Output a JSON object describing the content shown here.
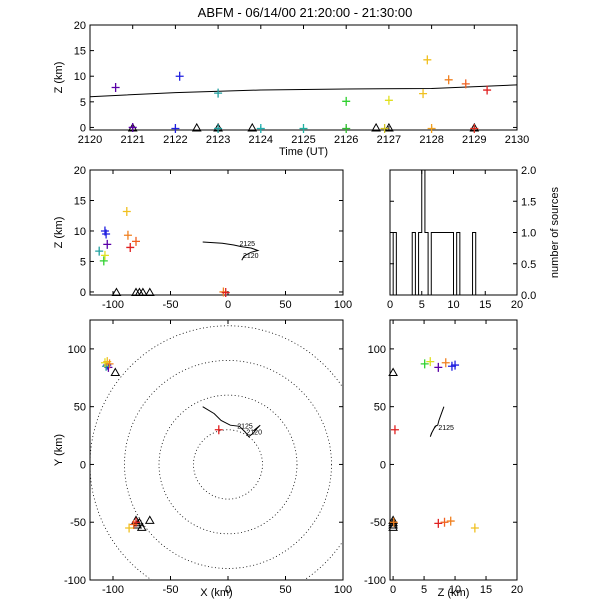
{
  "title": "ABFM - 06/14/00 21:20:00 - 21:30:00",
  "chart_data": [
    {
      "id": "time_height",
      "type": "scatter",
      "xlabel": "Time (UT)",
      "ylabel": "Z (km)",
      "xlim": [
        2120,
        2130
      ],
      "ylim": [
        -0.5,
        20
      ],
      "xticks": [
        2120,
        2121,
        2122,
        2123,
        2124,
        2125,
        2126,
        2127,
        2128,
        2129,
        2130
      ],
      "yticks": [
        0,
        5,
        10,
        15,
        20
      ],
      "sources": [
        {
          "x": 2120.6,
          "y": 7.8,
          "color": "#5a00a8"
        },
        {
          "x": 2121.0,
          "y": 0.0,
          "color": "#5a00a8"
        },
        {
          "x": 2122.1,
          "y": 10.0,
          "color": "#2020e0"
        },
        {
          "x": 2122.0,
          "y": -0.2,
          "color": "#2020e0"
        },
        {
          "x": 2123.0,
          "y": 6.7,
          "color": "#20a0a0"
        },
        {
          "x": 2123.0,
          "y": -0.2,
          "color": "#20a0a0"
        },
        {
          "x": 2124.0,
          "y": -0.2,
          "color": "#20b0b0"
        },
        {
          "x": 2125.0,
          "y": -0.2,
          "color": "#20b0a0"
        },
        {
          "x": 2126.0,
          "y": 5.1,
          "color": "#30d030"
        },
        {
          "x": 2126.0,
          "y": -0.2,
          "color": "#30c030"
        },
        {
          "x": 2127.0,
          "y": 5.3,
          "color": "#e0e020"
        },
        {
          "x": 2126.9,
          "y": -0.2,
          "color": "#d0c020"
        },
        {
          "x": 2127.9,
          "y": 13.2,
          "color": "#f0c020"
        },
        {
          "x": 2127.8,
          "y": 6.6,
          "color": "#f0c020"
        },
        {
          "x": 2128.0,
          "y": -0.2,
          "color": "#f0a020"
        },
        {
          "x": 2128.4,
          "y": 9.3,
          "color": "#f08020"
        },
        {
          "x": 2128.8,
          "y": 8.5,
          "color": "#f06020"
        },
        {
          "x": 2129.0,
          "y": -0.2,
          "color": "#e03020"
        },
        {
          "x": 2129.3,
          "y": 7.3,
          "color": "#e02020"
        }
      ],
      "stations": [
        2121.0,
        2122.5,
        2123.0,
        2123.8,
        2126.7,
        2127.0,
        2129.0
      ],
      "trend_line": [
        [
          2120,
          6.0
        ],
        [
          2122,
          6.8
        ],
        [
          2124,
          7.3
        ],
        [
          2126,
          7.5
        ],
        [
          2128,
          7.6
        ],
        [
          2130,
          8.3
        ]
      ]
    },
    {
      "id": "xz_projection",
      "type": "scatter",
      "ylabel": "Z (km)",
      "xlim": [
        -120,
        100
      ],
      "ylim": [
        -0.5,
        20
      ],
      "xticks": [
        -100,
        -50,
        0,
        50,
        100
      ],
      "yticks": [
        0,
        5,
        10,
        15,
        20
      ],
      "sources": [
        {
          "x": -105,
          "y": 7.8,
          "color": "#5a00a8"
        },
        {
          "x": -107,
          "y": 10.0,
          "color": "#2020e0"
        },
        {
          "x": -106,
          "y": 9.5,
          "color": "#2020e0"
        },
        {
          "x": -112,
          "y": 6.7,
          "color": "#20a0a0"
        },
        {
          "x": -108,
          "y": 5.1,
          "color": "#30d030"
        },
        {
          "x": -107,
          "y": 6.0,
          "color": "#e0e020"
        },
        {
          "x": -88,
          "y": 13.2,
          "color": "#f0c020"
        },
        {
          "x": -87,
          "y": 9.3,
          "color": "#f08020"
        },
        {
          "x": -80,
          "y": 8.3,
          "color": "#f06020"
        },
        {
          "x": -85,
          "y": 7.3,
          "color": "#e02020"
        },
        {
          "x": -4,
          "y": 0.0,
          "color": "#f08020"
        },
        {
          "x": -2,
          "y": -0.1,
          "color": "#e02020"
        }
      ],
      "stations": [
        -97,
        -80,
        -77,
        -74,
        -68
      ],
      "track": [
        [
          -22,
          8.2
        ],
        [
          -5,
          8.0
        ],
        [
          5,
          7.7
        ],
        [
          12,
          7.4
        ],
        [
          20,
          7.2
        ],
        [
          26,
          6.8
        ],
        [
          20,
          6.5
        ],
        [
          14,
          5.9
        ],
        [
          12,
          5.2
        ]
      ],
      "track_labels": [
        {
          "x": 10,
          "y": 7.5,
          "text": "2125"
        },
        {
          "x": 13,
          "y": 5.6,
          "text": "2120"
        }
      ]
    },
    {
      "id": "source_histogram",
      "type": "bar",
      "ylabel": "number of sources",
      "xlim": [
        0,
        20
      ],
      "ylim": [
        0,
        2
      ],
      "xticks": [
        0,
        5,
        10,
        15,
        20
      ],
      "yticks": [
        0.0,
        0.5,
        1.0,
        1.5,
        2.0
      ],
      "bins": [
        [
          0,
          0
        ],
        [
          0.5,
          1
        ],
        [
          1,
          0
        ],
        [
          1.5,
          0
        ],
        [
          2,
          0
        ],
        [
          2.5,
          0
        ],
        [
          3,
          0
        ],
        [
          3.5,
          1
        ],
        [
          4,
          0
        ],
        [
          4.5,
          1
        ],
        [
          5,
          2
        ],
        [
          5.5,
          1
        ],
        [
          6,
          0
        ],
        [
          6.5,
          1
        ],
        [
          7,
          1
        ],
        [
          7.5,
          1
        ],
        [
          8,
          1
        ],
        [
          8.5,
          1
        ],
        [
          9,
          1
        ],
        [
          9.5,
          1
        ],
        [
          10,
          0
        ],
        [
          10.5,
          1
        ],
        [
          11,
          0
        ],
        [
          11.5,
          0
        ],
        [
          12,
          0
        ],
        [
          12.5,
          0
        ],
        [
          13,
          1
        ],
        [
          13.5,
          0
        ],
        [
          14,
          0
        ],
        [
          14.5,
          0
        ],
        [
          15,
          0
        ],
        [
          15.5,
          0
        ],
        [
          16,
          0
        ],
        [
          16.5,
          0
        ],
        [
          17,
          0
        ],
        [
          17.5,
          0
        ],
        [
          18,
          0
        ],
        [
          18.5,
          0
        ],
        [
          19,
          0
        ],
        [
          19.5,
          0
        ]
      ]
    },
    {
      "id": "xy_plan",
      "type": "scatter",
      "xlabel": "X (km)",
      "ylabel": "Y (km)",
      "xlim": [
        -120,
        100
      ],
      "ylim": [
        -100,
        125
      ],
      "xticks": [
        -100,
        -50,
        0,
        50,
        100
      ],
      "yticks": [
        -100,
        -50,
        0,
        50,
        100
      ],
      "range_rings_km": [
        30,
        60,
        90,
        120
      ],
      "sources": [
        {
          "x": -104,
          "y": 84,
          "color": "#5a00a8"
        },
        {
          "x": -105,
          "y": 86,
          "color": "#2020e0"
        },
        {
          "x": -106,
          "y": 85,
          "color": "#20a0a0"
        },
        {
          "x": -107,
          "y": 88,
          "color": "#e0e020"
        },
        {
          "x": -105,
          "y": 89,
          "color": "#f0c020"
        },
        {
          "x": -103,
          "y": 87,
          "color": "#f08020"
        },
        {
          "x": -80,
          "y": -50,
          "color": "#e02020"
        },
        {
          "x": -82,
          "y": -52,
          "color": "#f06020"
        },
        {
          "x": -86,
          "y": -55,
          "color": "#f0c020"
        },
        {
          "x": -8,
          "y": 30,
          "color": "#e02020"
        }
      ],
      "stations": [
        [
          -98,
          80
        ],
        [
          -80,
          -48
        ],
        [
          -79,
          -52
        ],
        [
          -77,
          -50
        ],
        [
          -75,
          -54
        ],
        [
          -68,
          -48
        ]
      ],
      "track": [
        [
          -22,
          50
        ],
        [
          -12,
          44
        ],
        [
          -6,
          38
        ],
        [
          2,
          34
        ],
        [
          10,
          33
        ],
        [
          15,
          28
        ],
        [
          18,
          24
        ],
        [
          22,
          27
        ],
        [
          25,
          31
        ],
        [
          28,
          34
        ],
        [
          22,
          29
        ]
      ],
      "track_labels": [
        {
          "x": 8,
          "y": 31,
          "text": "2125"
        },
        {
          "x": 16,
          "y": 26,
          "text": "2120"
        }
      ]
    },
    {
      "id": "zy_projection",
      "type": "scatter",
      "xlabel": "Z (km)",
      "xlim": [
        -0.5,
        20
      ],
      "ylim": [
        -100,
        125
      ],
      "xticks": [
        0,
        5,
        10,
        15,
        20
      ],
      "yticks": [
        -100,
        -50,
        0,
        50,
        100
      ],
      "sources": [
        {
          "x": 5.1,
          "y": 87,
          "color": "#30d030"
        },
        {
          "x": 6.0,
          "y": 89,
          "color": "#e0e020"
        },
        {
          "x": 7.3,
          "y": 84,
          "color": "#5a00a8"
        },
        {
          "x": 8.5,
          "y": 88,
          "color": "#f08020"
        },
        {
          "x": 9.5,
          "y": 85,
          "color": "#2020e0"
        },
        {
          "x": 10.0,
          "y": 86,
          "color": "#2020e0"
        },
        {
          "x": 7.3,
          "y": -51,
          "color": "#e02020"
        },
        {
          "x": 8.3,
          "y": -50,
          "color": "#f06020"
        },
        {
          "x": 9.3,
          "y": -49,
          "color": "#f08020"
        },
        {
          "x": 13.2,
          "y": -55,
          "color": "#f0c020"
        },
        {
          "x": 0.3,
          "y": 30,
          "color": "#e02020"
        },
        {
          "x": 0.1,
          "y": -50,
          "color": "#f08020"
        }
      ],
      "stations": [
        [
          0.0,
          80
        ],
        [
          0.0,
          -48
        ],
        [
          0.0,
          -50
        ],
        [
          0.0,
          -52
        ],
        [
          0.0,
          -54
        ]
      ],
      "track": [
        [
          8.2,
          50
        ],
        [
          7.8,
          44
        ],
        [
          7.4,
          38
        ],
        [
          7.2,
          34
        ],
        [
          6.8,
          33
        ],
        [
          6.3,
          28
        ],
        [
          6.0,
          24
        ],
        [
          6.2,
          27
        ],
        [
          6.6,
          31
        ],
        [
          7.0,
          34
        ]
      ],
      "track_labels": [
        {
          "x": 7.3,
          "y": 30,
          "text": "2125"
        }
      ]
    }
  ]
}
